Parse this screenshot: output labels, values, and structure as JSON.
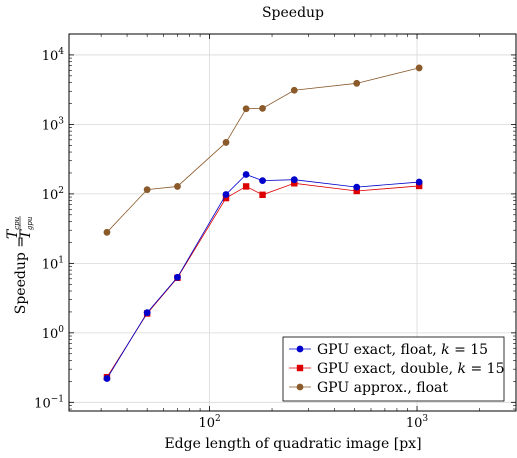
{
  "chart_data": {
    "type": "line",
    "title": "Speedup",
    "xlabel": "Edge length of quadratic image [px]",
    "ylabel": "Speedup",
    "ylabel_math": {
      "lhs": "Speedup =",
      "num_base": "T",
      "num_sub": "cpu",
      "den_base": "T",
      "den_sub": "gpu"
    },
    "x_scale": "log",
    "y_scale": "log",
    "xlim": [
      21,
      3000
    ],
    "ylim": [
      0.075,
      20000
    ],
    "grid": true,
    "legend_position": "bottom-right",
    "x_ticks": [
      {
        "base": "10",
        "exp": "2",
        "value": 100
      },
      {
        "base": "10",
        "exp": "3",
        "value": 1000
      }
    ],
    "y_ticks": [
      {
        "base": "10",
        "exp": "−1",
        "value": 0.1
      },
      {
        "base": "10",
        "exp": "0",
        "value": 1
      },
      {
        "base": "10",
        "exp": "1",
        "value": 10
      },
      {
        "base": "10",
        "exp": "2",
        "value": 100
      },
      {
        "base": "10",
        "exp": "3",
        "value": 1000
      },
      {
        "base": "10",
        "exp": "4",
        "value": 10000
      }
    ],
    "series": [
      {
        "name": "GPU exact, float, k = 15",
        "name_parts": {
          "prefix": "GPU exact, float, ",
          "var": "k",
          "suffix": " = 15"
        },
        "color": "#0000cc",
        "marker": "circle",
        "x": [
          32,
          50,
          70,
          120,
          150,
          180,
          256,
          512,
          1024
        ],
        "y": [
          0.22,
          1.95,
          6.3,
          98,
          190,
          155,
          160,
          125,
          148
        ]
      },
      {
        "name": "GPU exact, double, k = 15",
        "name_parts": {
          "prefix": "GPU exact, double, ",
          "var": "k",
          "suffix": " = 15"
        },
        "color": "#dd0000",
        "marker": "square",
        "x": [
          32,
          50,
          70,
          120,
          150,
          180,
          256,
          512,
          1024
        ],
        "y": [
          0.23,
          1.9,
          6.2,
          87,
          128,
          97,
          142,
          110,
          130
        ]
      },
      {
        "name": "GPU approx., float",
        "name_parts": {
          "prefix": "GPU approx., float",
          "var": "",
          "suffix": ""
        },
        "color": "#8b5a2b",
        "marker": "circle",
        "x": [
          32,
          50,
          70,
          120,
          150,
          180,
          256,
          512,
          1024
        ],
        "y": [
          28,
          115,
          128,
          550,
          1680,
          1700,
          3100,
          3900,
          6500
        ]
      }
    ]
  }
}
